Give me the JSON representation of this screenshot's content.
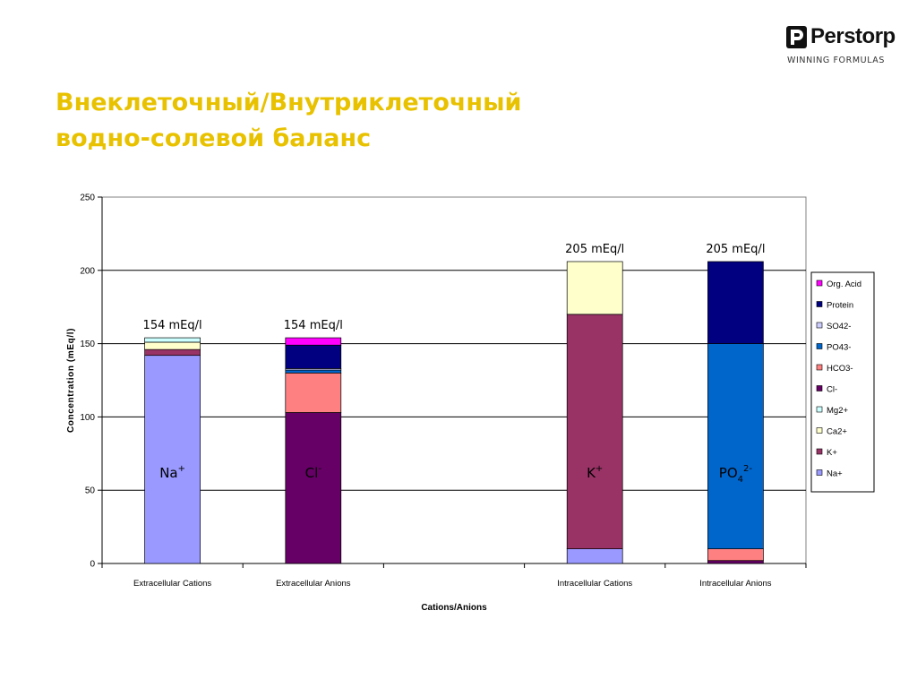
{
  "header": {
    "title_line1": "Внеклеточный/Внутриклеточный",
    "title_line2": "водно-солевой баланс",
    "logo_name": "Perstorp",
    "logo_tagline": "WINNING FORMULAS"
  },
  "chart_data": {
    "type": "bar",
    "stacked": true,
    "title": "",
    "xlabel": "Cations/Anions",
    "ylabel": "Concentration (mEq/l)",
    "ylim": [
      0,
      250
    ],
    "yticks": [
      0,
      50,
      100,
      150,
      200,
      250
    ],
    "grid": "horizontal major gridlines",
    "legend_position": "right",
    "categories": [
      "Extracellular Cations",
      "Extracellular Anions",
      "",
      "Intracellular Cations",
      "Intracellular Anions"
    ],
    "totals": [
      "154 mEq/l",
      "154 mEq/l",
      "",
      "205 mEq/l",
      "205 mEq/l"
    ],
    "ion_labels": [
      {
        "base": "Na",
        "sup": "+",
        "sub": ""
      },
      {
        "base": "Cl",
        "sup": "-",
        "sub": ""
      },
      {
        "base": "",
        "sup": "",
        "sub": ""
      },
      {
        "base": "K",
        "sup": "+",
        "sub": ""
      },
      {
        "base": "PO",
        "sup": "2-",
        "sub": "4"
      }
    ],
    "series": [
      {
        "name": "Na+",
        "color": "#9999ff",
        "values": [
          142,
          0,
          0,
          10,
          0
        ]
      },
      {
        "name": "K+",
        "color": "#993366",
        "values": [
          4,
          0,
          0,
          160,
          0
        ]
      },
      {
        "name": "Ca2+",
        "color": "#ffffcc",
        "values": [
          5,
          0,
          0,
          36,
          0
        ]
      },
      {
        "name": "Mg2+",
        "color": "#ccffff",
        "values": [
          3,
          0,
          0,
          0,
          0
        ]
      },
      {
        "name": "Cl-",
        "color": "#660066",
        "values": [
          0,
          103,
          0,
          0,
          2
        ]
      },
      {
        "name": "HCO3-",
        "color": "#ff8080",
        "values": [
          0,
          27,
          0,
          0,
          8
        ]
      },
      {
        "name": "PO43-",
        "color": "#0066cc",
        "values": [
          0,
          2,
          0,
          0,
          140
        ]
      },
      {
        "name": "SO42-",
        "color": "#ccccff",
        "values": [
          0,
          1,
          0,
          0,
          0
        ]
      },
      {
        "name": "Protein",
        "color": "#000080",
        "values": [
          0,
          16,
          0,
          0,
          56
        ]
      },
      {
        "name": "Org. Acid",
        "color": "#ff00ff",
        "values": [
          0,
          5,
          0,
          0,
          0
        ]
      }
    ]
  }
}
